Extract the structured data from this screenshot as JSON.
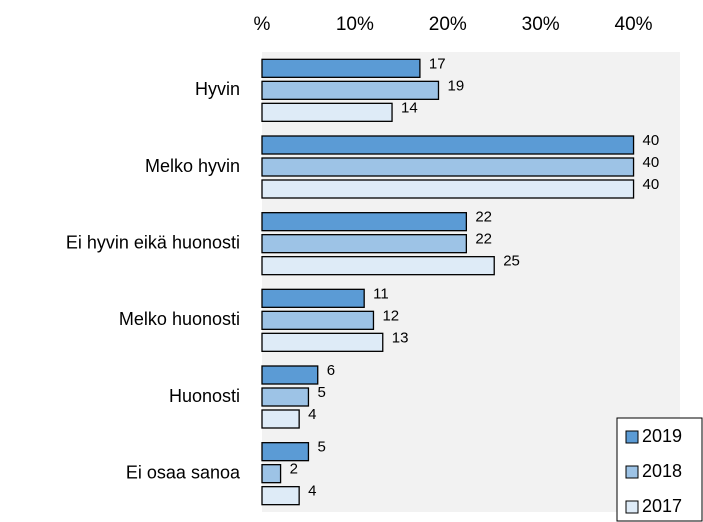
{
  "chart_data": {
    "type": "bar",
    "orientation": "horizontal",
    "categories": [
      "Hyvin",
      "Melko hyvin",
      "Ei hyvin eikä huonosti",
      "Melko huonosti",
      "Huonosti",
      "Ei osaa sanoa"
    ],
    "series": [
      {
        "name": "2019",
        "color": "#5b9bd5",
        "values": [
          17,
          40,
          22,
          11,
          6,
          5
        ]
      },
      {
        "name": "2018",
        "color": "#9dc3e6",
        "values": [
          19,
          40,
          22,
          12,
          5,
          2
        ]
      },
      {
        "name": "2017",
        "color": "#deebf7",
        "values": [
          14,
          40,
          25,
          13,
          4,
          4
        ]
      }
    ],
    "xlim": [
      0,
      45
    ],
    "xticks": [
      {
        "value": 0,
        "label": "%"
      },
      {
        "value": 10,
        "label": "10%"
      },
      {
        "value": 20,
        "label": "20%"
      },
      {
        "value": 30,
        "label": "30%"
      },
      {
        "value": 40,
        "label": "40%"
      }
    ],
    "legend": "lower right"
  }
}
